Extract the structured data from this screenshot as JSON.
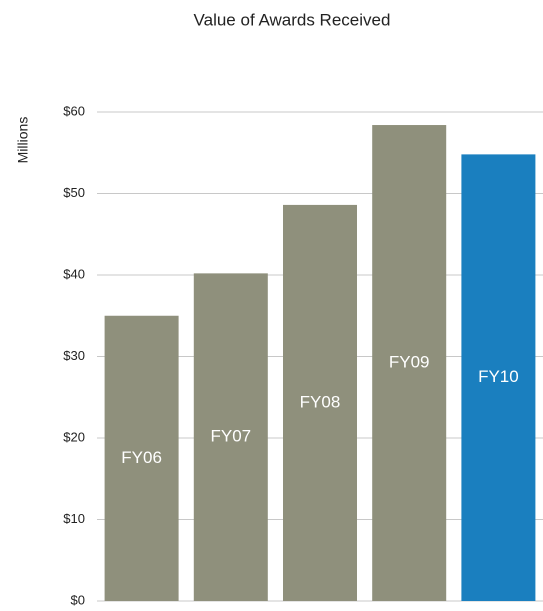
{
  "chart_data": {
    "type": "bar",
    "title": "Value of Awards Received",
    "y_label": "Millions",
    "categories": [
      "FY06",
      "FY07",
      "FY08",
      "FY09",
      "FY10"
    ],
    "values": [
      35.0,
      40.2,
      48.6,
      58.4,
      54.8
    ],
    "colors": [
      "#8f907c",
      "#8f907c",
      "#8f907c",
      "#8f907c",
      "#1a7fbf"
    ],
    "ylim": [
      0,
      60
    ],
    "yticks": [
      {
        "value": 0,
        "label": "$0"
      },
      {
        "value": 10,
        "label": "$10"
      },
      {
        "value": 20,
        "label": "$20"
      },
      {
        "value": 30,
        "label": "$30"
      },
      {
        "value": 40,
        "label": "$40"
      },
      {
        "value": 50,
        "label": "$50"
      },
      {
        "value": 60,
        "label": "$60"
      }
    ],
    "grid": true
  }
}
